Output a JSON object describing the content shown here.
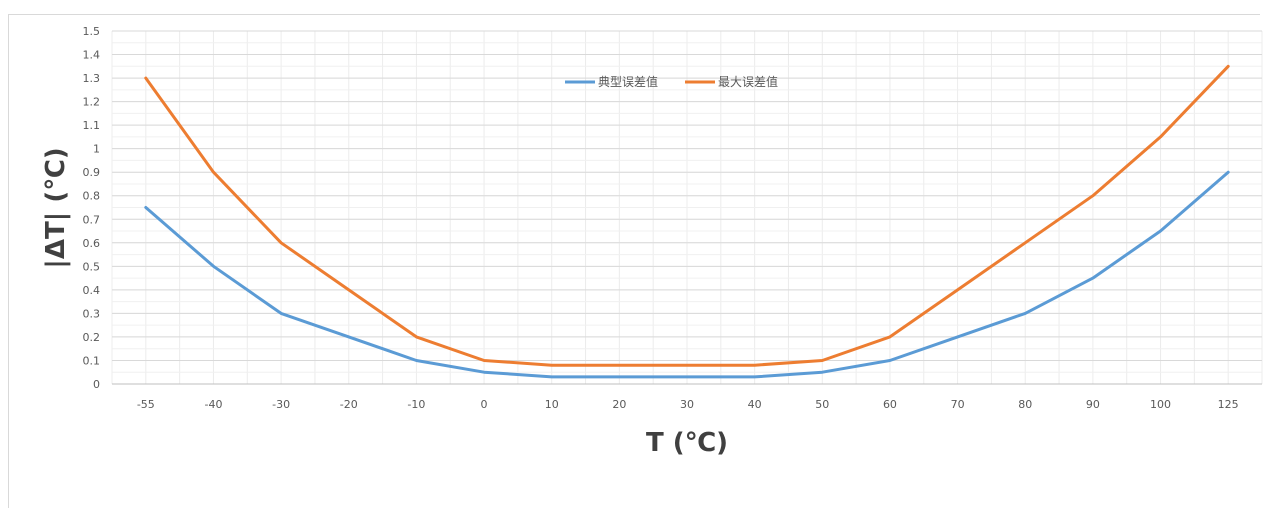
{
  "chart_data": {
    "type": "line",
    "categories": [
      "-55",
      "-40",
      "-30",
      "-20",
      "-10",
      "0",
      "10",
      "20",
      "30",
      "40",
      "50",
      "60",
      "70",
      "80",
      "90",
      "100",
      "125"
    ],
    "series": [
      {
        "name": "典型误差值",
        "color": "#5b9bd5",
        "values": [
          0.75,
          0.5,
          0.3,
          0.2,
          0.1,
          0.05,
          0.03,
          0.03,
          0.03,
          0.03,
          0.05,
          0.1,
          0.2,
          0.3,
          0.45,
          0.65,
          0.9
        ]
      },
      {
        "name": "最大误差值",
        "color": "#ed7d31",
        "values": [
          1.3,
          0.9,
          0.6,
          0.4,
          0.2,
          0.1,
          0.08,
          0.08,
          0.08,
          0.08,
          0.1,
          0.2,
          0.4,
          0.6,
          0.8,
          1.05,
          1.35
        ]
      }
    ],
    "xlabel": "T (℃)",
    "ylabel": "|ΔT| (℃)",
    "ylim": [
      0,
      1.5
    ],
    "yticks": [
      "0",
      "0.1",
      "0.2",
      "0.3",
      "0.4",
      "0.5",
      "0.6",
      "0.7",
      "0.8",
      "0.9",
      "1",
      "1.1",
      "1.2",
      "1.3",
      "1.4",
      "1.5"
    ],
    "grid": true,
    "legend_position": "top-center"
  }
}
